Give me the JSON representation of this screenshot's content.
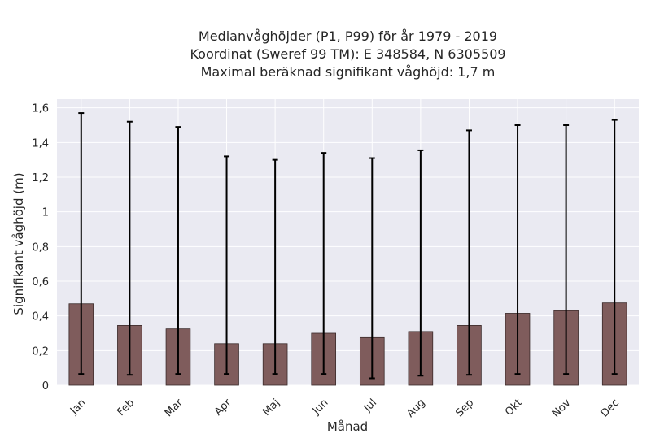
{
  "chart_data": {
    "type": "bar",
    "title_lines": [
      "Medianvåghöjder (P1, P99) för år 1979 - 2019",
      "Koordinat (Sweref 99 TM): E 348584, N 6305509",
      "Maximal beräknad signifikant våghöjd: 1,7 m"
    ],
    "xlabel": "Månad",
    "ylabel": "Signifikant våghöjd (m)",
    "categories": [
      "Jan",
      "Feb",
      "Mar",
      "Apr",
      "Maj",
      "Jun",
      "Jul",
      "Aug",
      "Sep",
      "Okt",
      "Nov",
      "Dec"
    ],
    "values": [
      0.47,
      0.345,
      0.325,
      0.24,
      0.24,
      0.3,
      0.275,
      0.31,
      0.345,
      0.415,
      0.43,
      0.475
    ],
    "error_low": [
      0.065,
      0.06,
      0.065,
      0.065,
      0.065,
      0.065,
      0.04,
      0.055,
      0.06,
      0.065,
      0.065,
      0.065
    ],
    "error_high": [
      1.57,
      1.52,
      1.49,
      1.32,
      1.3,
      1.34,
      1.31,
      1.355,
      1.47,
      1.5,
      1.5,
      1.53
    ],
    "yticks": [
      {
        "value": 0,
        "label": "0"
      },
      {
        "value": 0.2,
        "label": "0,2"
      },
      {
        "value": 0.4,
        "label": "0,4"
      },
      {
        "value": 0.6,
        "label": "0,6"
      },
      {
        "value": 0.8,
        "label": "0,8"
      },
      {
        "value": 1.0,
        "label": "1"
      },
      {
        "value": 1.2,
        "label": "1,2"
      },
      {
        "value": 1.4,
        "label": "1,4"
      },
      {
        "value": 1.6,
        "label": "1,6"
      }
    ],
    "ylim": [
      0,
      1.65
    ],
    "grid": true,
    "colors": {
      "bar": "#7f5c5c",
      "bar_edge": "#3a2a2a",
      "error": "#000000",
      "background": "#eaeaf2",
      "grid": "#ffffff"
    }
  }
}
